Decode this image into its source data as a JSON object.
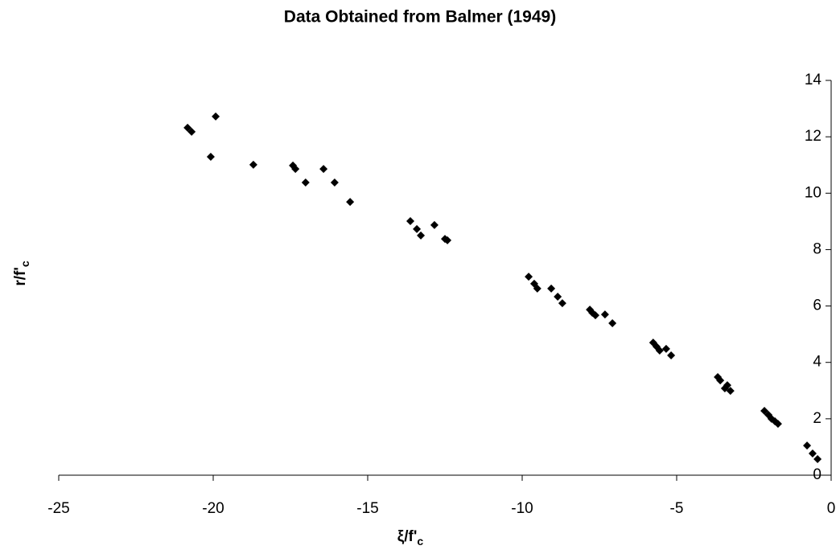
{
  "chart_data": {
    "type": "scatter",
    "title": "Data Obtained from Balmer (1949)",
    "x_label": "ξ/f'",
    "x_label_subscript": "c",
    "y_label": "r/f'",
    "y_label_subscript": "c",
    "marker": "diamond",
    "color": "#000000",
    "xlim": [
      -25,
      0
    ],
    "xticks": [
      -25,
      -20,
      -15,
      -10,
      -5,
      0
    ],
    "ylim": [
      0,
      14
    ],
    "yticks": [
      0,
      2,
      4,
      6,
      8,
      10,
      12,
      14
    ],
    "x": [
      -20.83,
      -20.7,
      -19.92,
      -20.08,
      -18.7,
      -17.42,
      -17.34,
      -17.01,
      -16.43,
      -16.07,
      -15.57,
      -13.62,
      -13.41,
      -13.28,
      -12.84,
      -12.5,
      -12.42,
      -9.79,
      -9.61,
      -9.51,
      -9.06,
      -8.85,
      -8.7,
      -7.81,
      -7.73,
      -7.63,
      -7.32,
      -7.08,
      -5.76,
      -5.65,
      -5.55,
      -5.34,
      -5.18,
      -3.67,
      -3.59,
      -3.44,
      -3.36,
      -3.26,
      -2.16,
      -2.03,
      -1.93,
      -1.82,
      -1.72,
      -0.78,
      -0.6,
      -0.44
    ],
    "y": [
      12.32,
      12.18,
      12.72,
      11.29,
      11.01,
      10.98,
      10.86,
      10.38,
      10.86,
      10.38,
      9.69,
      9.01,
      8.73,
      8.5,
      8.87,
      8.38,
      8.33,
      7.04,
      6.79,
      6.62,
      6.62,
      6.33,
      6.1,
      5.87,
      5.76,
      5.67,
      5.7,
      5.39,
      4.7,
      4.56,
      4.42,
      4.48,
      4.25,
      3.48,
      3.36,
      3.08,
      3.19,
      2.99,
      2.28,
      2.14,
      2.0,
      1.91,
      1.82,
      1.05,
      0.77,
      0.57
    ]
  }
}
